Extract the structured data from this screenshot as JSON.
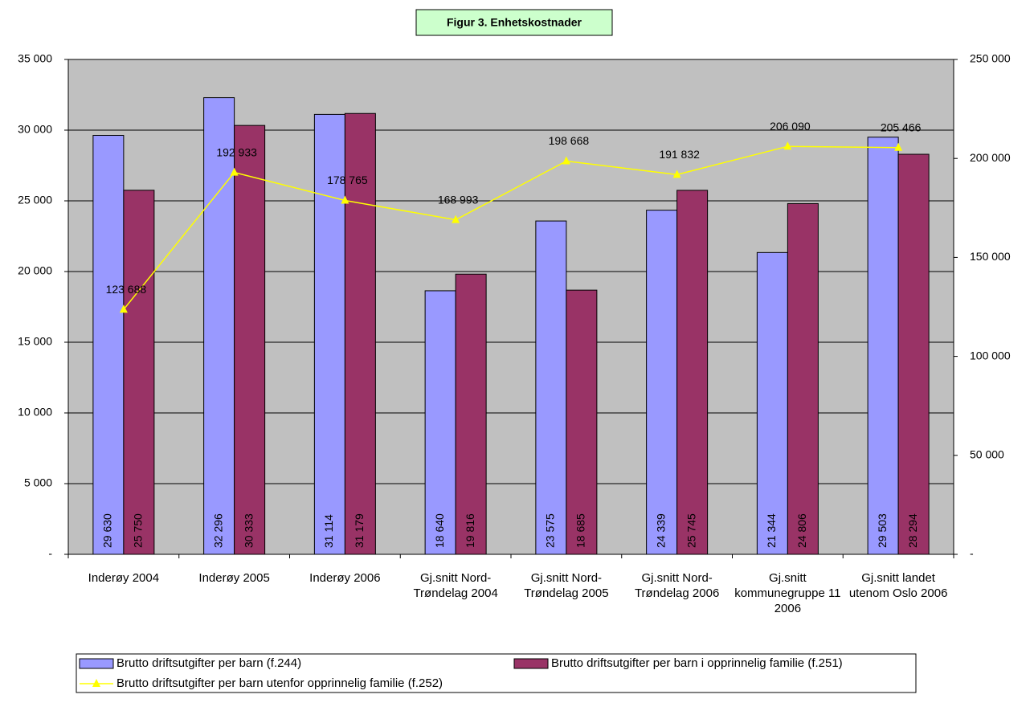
{
  "chart_data": {
    "type": "bar",
    "title": "Figur 3. Enhetskostnader",
    "categories": [
      "Inderøy 2004",
      "Inderøy 2005",
      "Inderøy 2006",
      "Gj.snitt Nord-Trøndelag 2004",
      "Gj.snitt Nord-Trøndelag 2005",
      "Gj.snitt Nord-Trøndelag 2006",
      "Gj.snitt kommunegruppe 11 2006",
      "Gj.snitt landet utenom Oslo 2006"
    ],
    "series": [
      {
        "name": "Brutto driftsutgifter per barn (f.244)",
        "type": "bar",
        "color": "#9999ff",
        "values": [
          29630,
          32296,
          31114,
          18640,
          23575,
          24339,
          21344,
          29503
        ],
        "value_labels": [
          "29 630",
          "32 296",
          "31 114",
          "18 640",
          "23 575",
          "24 339",
          "21 344",
          "29 503"
        ]
      },
      {
        "name": "Brutto driftsutgifter per barn i opprinnelig familie (f.251)",
        "type": "bar",
        "color": "#993366",
        "values": [
          25750,
          30333,
          31179,
          19816,
          18685,
          25745,
          24806,
          28294
        ],
        "value_labels": [
          "25 750",
          "30 333",
          "31 179",
          "19 816",
          "18 685",
          "25 745",
          "24 806",
          "28 294"
        ]
      },
      {
        "name": "Brutto driftsutgifter per barn utenfor opprinnelig familie (f.252)",
        "type": "line",
        "axis": "y2",
        "color": "#ffff00",
        "values": [
          123688,
          192933,
          178765,
          168993,
          198668,
          191832,
          206090,
          205466
        ],
        "value_labels": [
          "123 688",
          "192 933",
          "178 765",
          "168 993",
          "198 668",
          "191 832",
          "206 090",
          "205 466"
        ]
      }
    ],
    "ylim": [
      0,
      35000
    ],
    "yticks": [
      {
        "value": 0,
        "label": "-"
      },
      {
        "value": 5000,
        "label": "5 000"
      },
      {
        "value": 10000,
        "label": "10 000"
      },
      {
        "value": 15000,
        "label": "15 000"
      },
      {
        "value": 20000,
        "label": "20 000"
      },
      {
        "value": 25000,
        "label": "25 000"
      },
      {
        "value": 30000,
        "label": "30 000"
      },
      {
        "value": 35000,
        "label": "35 000"
      }
    ],
    "y2lim": [
      0,
      250000
    ],
    "y2ticks": [
      {
        "value": 0,
        "label": "-"
      },
      {
        "value": 50000,
        "label": "50 000"
      },
      {
        "value": 100000,
        "label": "100 000"
      },
      {
        "value": 150000,
        "label": "150 000"
      },
      {
        "value": 200000,
        "label": "200 000"
      },
      {
        "value": 250000,
        "label": "250 000"
      }
    ],
    "grid": true,
    "legend": "bottom"
  }
}
